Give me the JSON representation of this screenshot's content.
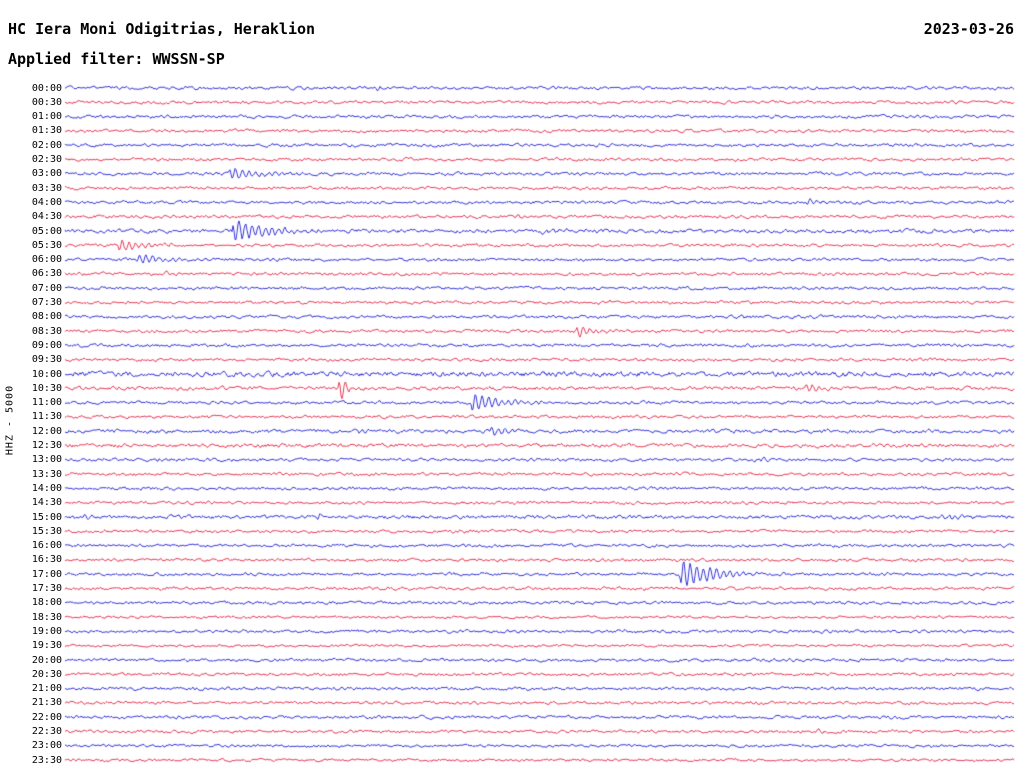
{
  "header": {
    "station_title": "HC Iera Moni Odigitrias, Heraklion",
    "date": "2023-03-26",
    "filter_line": "Applied filter: WWSSN-SP"
  },
  "axis": {
    "scale_label": "HHZ - 5000"
  },
  "chart_data": {
    "type": "line",
    "subtype": "helicorder-seismogram",
    "title": "HC Iera Moni Odigitrias, Heraklion",
    "date": "2023-03-26",
    "filter": "WWSSN-SP",
    "channel": "HHZ",
    "scale": 5000,
    "rows": 48,
    "row_interval_minutes": 30,
    "legend_position": "none",
    "grid": false,
    "colors": {
      "even": "#0000cd",
      "odd": "#e0092e"
    },
    "row_labels": [
      "00:00",
      "00:30",
      "01:00",
      "01:30",
      "02:00",
      "02:30",
      "03:00",
      "03:30",
      "04:00",
      "04:30",
      "05:00",
      "05:30",
      "06:00",
      "06:30",
      "07:00",
      "07:30",
      "08:00",
      "08:30",
      "09:00",
      "09:30",
      "10:00",
      "10:30",
      "11:00",
      "11:30",
      "12:00",
      "12:30",
      "13:00",
      "13:30",
      "14:00",
      "14:30",
      "15:00",
      "15:30",
      "16:00",
      "16:30",
      "17:00",
      "17:30",
      "18:00",
      "18:30",
      "19:00",
      "19:30",
      "20:00",
      "20:30",
      "21:00",
      "21:30",
      "22:00",
      "22:30",
      "23:00",
      "23:30"
    ],
    "noise_amp": 1.0,
    "row_noise": {
      "10:00": 1.6,
      "10:30": 1.2,
      "12:00": 1.2,
      "12:30": 1.2,
      "15:00": 1.2,
      "05:00": 1.2,
      "18:30": 0.85,
      "19:30": 0.85,
      "23:00": 0.9,
      "23:30": 0.9
    },
    "events": [
      {
        "time": "00:00",
        "pos": 0.327,
        "amp": 2.5,
        "dur": 0.012
      },
      {
        "time": "00:30",
        "pos": 0.932,
        "amp": 2.0,
        "dur": 0.008
      },
      {
        "time": "02:30",
        "pos": 0.42,
        "amp": 2.0,
        "dur": 0.01
      },
      {
        "time": "02:30",
        "pos": 0.935,
        "amp": 1.8,
        "dur": 0.008
      },
      {
        "time": "03:00",
        "pos": 0.172,
        "amp": 6.0,
        "dur": 0.03
      },
      {
        "time": "04:00",
        "pos": 0.781,
        "amp": 4.0,
        "dur": 0.015
      },
      {
        "time": "04:30",
        "pos": 0.475,
        "amp": 1.8,
        "dur": 0.008
      },
      {
        "time": "05:00",
        "pos": 0.176,
        "amp": 11.0,
        "dur": 0.035
      },
      {
        "time": "05:00",
        "pos": 0.5,
        "amp": 2.5,
        "dur": 0.03
      },
      {
        "time": "05:30",
        "pos": 0.055,
        "amp": 6.5,
        "dur": 0.02
      },
      {
        "time": "05:30",
        "pos": 0.1,
        "amp": 2.5,
        "dur": 0.015
      },
      {
        "time": "06:00",
        "pos": 0.075,
        "amp": 5.5,
        "dur": 0.022
      },
      {
        "time": "06:00",
        "pos": 0.21,
        "amp": 2.2,
        "dur": 0.01
      },
      {
        "time": "06:30",
        "pos": 0.105,
        "amp": 3.0,
        "dur": 0.01
      },
      {
        "time": "06:30",
        "pos": 0.935,
        "amp": 1.8,
        "dur": 0.008
      },
      {
        "time": "07:30",
        "pos": 0.57,
        "amp": 2.0,
        "dur": 0.008
      },
      {
        "time": "08:00",
        "pos": 0.385,
        "amp": 2.2,
        "dur": 0.01
      },
      {
        "time": "08:00",
        "pos": 0.71,
        "amp": 1.8,
        "dur": 0.008
      },
      {
        "time": "08:30",
        "pos": 0.538,
        "amp": 5.5,
        "dur": 0.02
      },
      {
        "time": "10:30",
        "pos": 0.288,
        "amp": 18.0,
        "dur": 0.006
      },
      {
        "time": "10:30",
        "pos": 0.78,
        "amp": 4.5,
        "dur": 0.015
      },
      {
        "time": "11:00",
        "pos": 0.427,
        "amp": 10.0,
        "dur": 0.028
      },
      {
        "time": "12:00",
        "pos": 0.305,
        "amp": 2.2,
        "dur": 0.01
      },
      {
        "time": "12:00",
        "pos": 0.448,
        "amp": 5.5,
        "dur": 0.016
      },
      {
        "time": "13:00",
        "pos": 0.095,
        "amp": 3.0,
        "dur": 0.008
      },
      {
        "time": "13:00",
        "pos": 0.725,
        "amp": 3.0,
        "dur": 0.01
      },
      {
        "time": "15:00",
        "pos": 0.017,
        "amp": 3.0,
        "dur": 0.008
      },
      {
        "time": "15:00",
        "pos": 0.265,
        "amp": 3.5,
        "dur": 0.01
      },
      {
        "time": "15:00",
        "pos": 0.92,
        "amp": 2.5,
        "dur": 0.025
      },
      {
        "time": "17:00",
        "pos": 0.648,
        "amp": 15.0,
        "dur": 0.032
      },
      {
        "time": "19:00",
        "pos": 0.58,
        "amp": 2.5,
        "dur": 0.006
      },
      {
        "time": "21:00",
        "pos": 0.06,
        "amp": 2.0,
        "dur": 0.006
      },
      {
        "time": "22:00",
        "pos": 0.115,
        "amp": 2.0,
        "dur": 0.006
      },
      {
        "time": "22:30",
        "pos": 0.79,
        "amp": 2.0,
        "dur": 0.008
      }
    ]
  }
}
